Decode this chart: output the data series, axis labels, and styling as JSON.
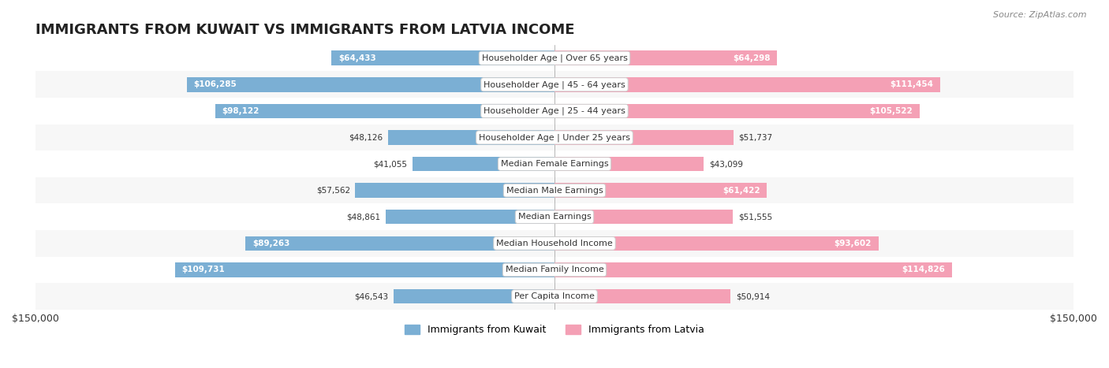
{
  "title": "IMMIGRANTS FROM KUWAIT VS IMMIGRANTS FROM LATVIA INCOME",
  "source": "Source: ZipAtlas.com",
  "categories": [
    "Per Capita Income",
    "Median Family Income",
    "Median Household Income",
    "Median Earnings",
    "Median Male Earnings",
    "Median Female Earnings",
    "Householder Age | Under 25 years",
    "Householder Age | 25 - 44 years",
    "Householder Age | 45 - 64 years",
    "Householder Age | Over 65 years"
  ],
  "kuwait_values": [
    46543,
    109731,
    89263,
    48861,
    57562,
    41055,
    48126,
    98122,
    106285,
    64433
  ],
  "latvia_values": [
    50914,
    114826,
    93602,
    51555,
    61422,
    43099,
    51737,
    105522,
    111454,
    64298
  ],
  "kuwait_color": "#7bafd4",
  "latvia_color": "#f4a0b5",
  "kuwait_label_color": "#4a7fb5",
  "latvia_label_color": "#e05580",
  "bar_height": 0.55,
  "xlim": 150000,
  "background_color": "#f5f5f5",
  "row_bg_light": "#f9f9f9",
  "row_bg_dark": "#eeeeee",
  "title_fontsize": 13,
  "label_fontsize": 8,
  "value_fontsize": 7.5,
  "legend_fontsize": 9,
  "source_fontsize": 8
}
